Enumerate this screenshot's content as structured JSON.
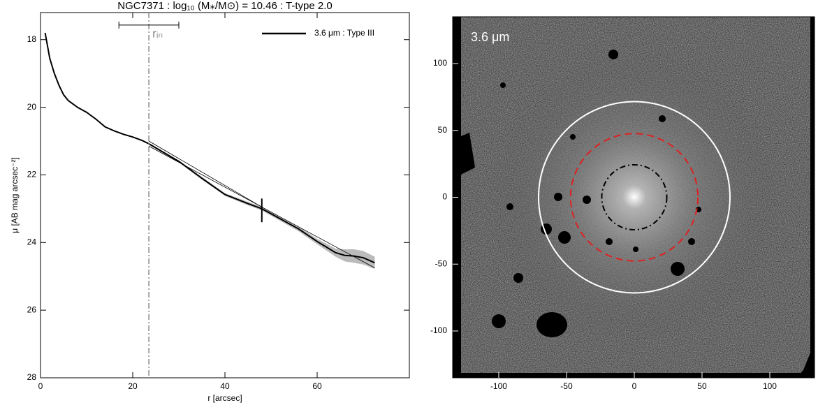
{
  "chart_data": [
    {
      "type": "line",
      "title": "NGC7371 : log₁₀ (M⁎/M⊙) = 10.46 : T-type 2.0",
      "xlabel": "r [arcsec]",
      "ylabel": "μ [AB mag arcsec⁻²]",
      "xlim": [
        0,
        80
      ],
      "xticks": [
        0,
        20,
        40,
        60
      ],
      "ylim": [
        28,
        17.2
      ],
      "yticks": [
        18,
        20,
        22,
        24,
        26,
        28
      ],
      "legend": "upper right",
      "series": [
        {
          "name": "3.6 μm : Type III",
          "color": "#000000",
          "x": [
            1,
            2,
            3,
            4,
            5,
            6,
            8,
            10,
            12,
            14,
            16,
            18,
            20,
            22,
            23.5,
            26,
            30,
            35,
            40,
            45,
            48,
            52,
            56,
            60,
            64,
            66,
            68,
            70,
            72.5
          ],
          "values": [
            17.8,
            18.55,
            19.0,
            19.35,
            19.63,
            19.8,
            20.0,
            20.15,
            20.35,
            20.58,
            20.7,
            20.8,
            20.88,
            20.98,
            21.08,
            21.28,
            21.6,
            22.1,
            22.58,
            22.85,
            23.0,
            23.3,
            23.6,
            23.97,
            24.3,
            24.38,
            24.4,
            24.45,
            24.6
          ],
          "errors": [
            0.02,
            0.02,
            0.02,
            0.02,
            0.02,
            0.02,
            0.02,
            0.02,
            0.02,
            0.02,
            0.02,
            0.02,
            0.02,
            0.02,
            0.03,
            0.03,
            0.03,
            0.04,
            0.04,
            0.05,
            0.05,
            0.06,
            0.07,
            0.08,
            0.12,
            0.18,
            0.2,
            0.2,
            0.18
          ]
        }
      ],
      "fits": [
        {
          "x": [
            23.5,
            48
          ],
          "values": [
            21.0,
            22.95
          ]
        },
        {
          "x": [
            23.5,
            72.5
          ],
          "values": [
            21.15,
            24.75
          ]
        }
      ],
      "r_in": {
        "label": "rᵢₙ",
        "value": 23.5,
        "err_low": 17,
        "err_high": 30,
        "y": 17.57
      },
      "break": {
        "x": 48,
        "values": [
          22.7,
          23.4
        ]
      }
    },
    {
      "type": "image",
      "annotation": "3.6 μm",
      "xlim": [
        -134,
        133
      ],
      "xticks": [
        -100,
        -50,
        0,
        50,
        100
      ],
      "ylim": [
        -135,
        135
      ],
      "yticks": [
        -100,
        -50,
        0,
        50,
        100
      ],
      "circles": [
        {
          "radius": 70.6,
          "color": "#ffffff",
          "style": "solid"
        },
        {
          "radius": 47,
          "color": "#dd2222",
          "style": "dashed"
        },
        {
          "radius": 24,
          "color": "#000000",
          "style": "dashdot"
        }
      ]
    }
  ]
}
